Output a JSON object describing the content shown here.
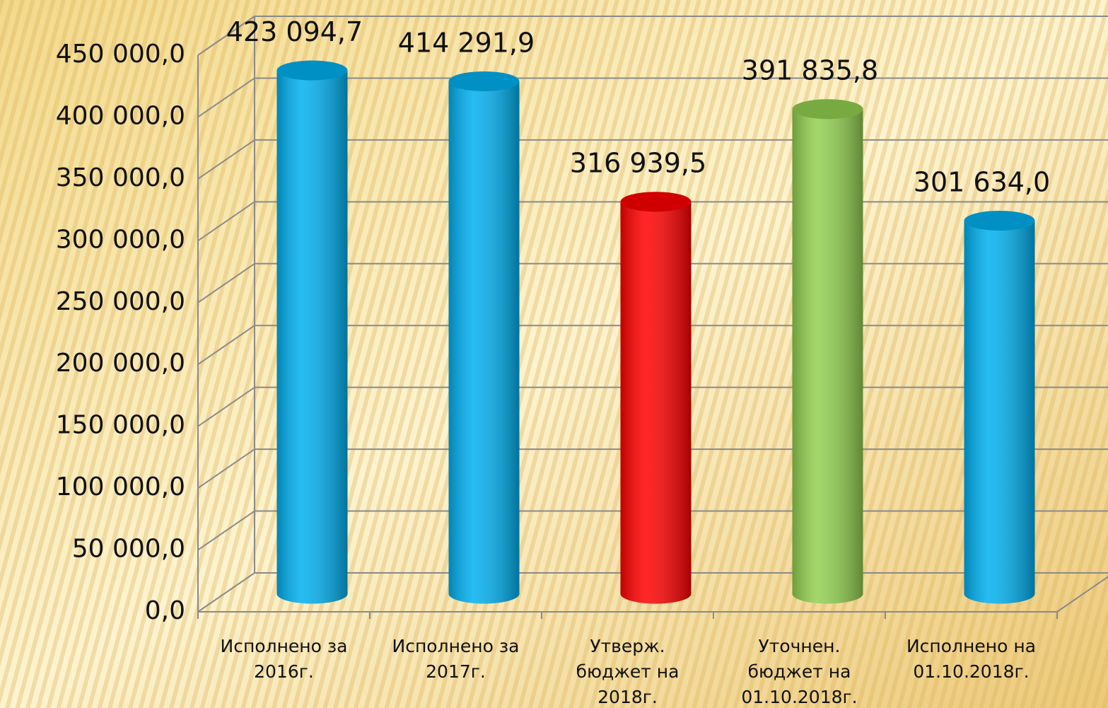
{
  "chart_data": {
    "type": "bar3d",
    "categories": [
      [
        "Исполнено за",
        "2016г."
      ],
      [
        "Исполнено за",
        "2017г."
      ],
      [
        "Утверж.",
        "бюджет на",
        "2018г."
      ],
      [
        "Уточнен.",
        "бюджет на",
        "01.10.2018г."
      ],
      [
        "Исполнено на",
        "01.10.2018г."
      ]
    ],
    "values": [
      423094.7,
      414291.9,
      316939.5,
      391835.8,
      301634.0
    ],
    "value_labels": [
      "423 094,7",
      "414 291,9",
      "316 939,5",
      "391 835,8",
      "301 634,0"
    ],
    "colors": [
      "#00b0f0",
      "#00b0f0",
      "#ff0000",
      "#92d050",
      "#00b0f0"
    ],
    "ylim": [
      0,
      450000
    ],
    "yticks": [
      {
        "value": 0,
        "label": "0,0"
      },
      {
        "value": 50000,
        "label": "50 000,0"
      },
      {
        "value": 100000,
        "label": "100 000,0"
      },
      {
        "value": 150000,
        "label": "150 000,0"
      },
      {
        "value": 200000,
        "label": "200 000,0"
      },
      {
        "value": 250000,
        "label": "250 000,0"
      },
      {
        "value": 300000,
        "label": "300 000,0"
      },
      {
        "value": 350000,
        "label": "350 000,0"
      },
      {
        "value": 400000,
        "label": "400 000,0"
      },
      {
        "value": 450000,
        "label": "450 000,0"
      }
    ],
    "grid": true
  }
}
